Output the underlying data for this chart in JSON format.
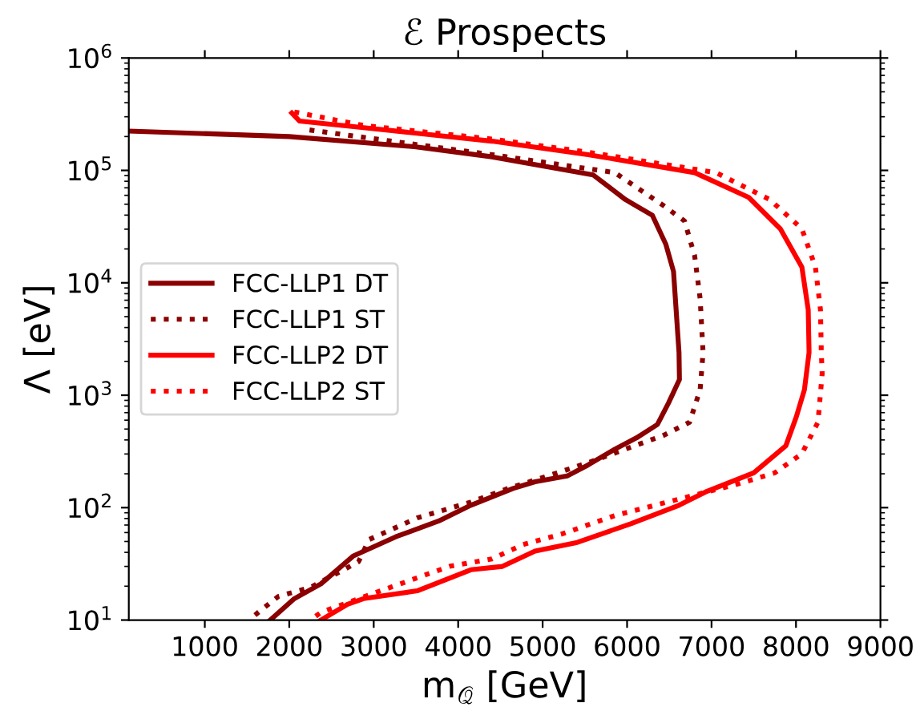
{
  "chart_data": {
    "type": "line",
    "title": "ℰ Prospects",
    "xlabel": "m$_{𝒬}$ [GeV]",
    "ylabel": "Λ [eV]",
    "log": "y",
    "grid": false,
    "legend": "left",
    "marker": "none",
    "xlim": [
      100,
      9000
    ],
    "xticks": [
      1000,
      2000,
      3000,
      4000,
      5000,
      6000,
      7000,
      8000,
      9000
    ],
    "ylim": [
      10,
      1000000
    ],
    "yticks": [
      {
        "value": 10,
        "label": "10$^{1}$"
      },
      {
        "value": 100,
        "label": "10$^{2}$"
      },
      {
        "value": 1000,
        "label": "10$^{3}$"
      },
      {
        "value": 10000,
        "label": "10$^{4}$"
      },
      {
        "value": 100000,
        "label": "10$^{5}$"
      },
      {
        "value": 1000000,
        "label": "10$^{6}$"
      }
    ],
    "series": [
      {
        "name": "FCC-LLP1 DT",
        "color": "#8b0000",
        "line_style": "solid",
        "x": [
          100,
          2000,
          3500,
          4400,
          5600,
          5980,
          6300,
          6460,
          6550,
          6615,
          6620,
          6490,
          6360,
          6110,
          5855,
          5540,
          5290,
          4910,
          4650,
          4150,
          3770,
          3260,
          2755,
          2375,
          2060,
          1775
        ],
        "values": [
          224000,
          200000,
          162000,
          132000,
          91000,
          55000,
          39800,
          21900,
          12600,
          2400,
          1380,
          851,
          550,
          417,
          331,
          240,
          191,
          170,
          148,
          105,
          76,
          55,
          37,
          21,
          15.5,
          10
        ]
      },
      {
        "name": "FCC-LLP1 ST",
        "color": "#8b0000",
        "line_style": "dotted",
        "x": [
          2240,
          3500,
          4400,
          5855,
          6425,
          6680,
          6800,
          6865,
          6900,
          6865,
          6740,
          6425,
          5980,
          5540,
          5095,
          4590,
          4150,
          3515,
          2945,
          2820,
          2250,
          1870,
          1555
        ],
        "values": [
          229000,
          170000,
          138000,
          95500,
          49000,
          35500,
          17400,
          7240,
          2400,
          1120,
          575,
          437,
          331,
          251,
          195,
          148,
          112,
          81,
          52,
          33,
          19.5,
          16.2,
          10.5
        ]
      },
      {
        "name": "FCC-LLP2 DT",
        "color": "#ff0000",
        "line_style": "solid",
        "x": [
          2030,
          2120,
          2880,
          4400,
          5540,
          6800,
          7440,
          7815,
          8070,
          8145,
          8155,
          8100,
          8005,
          7880,
          7500,
          6930,
          6615,
          6045,
          5410,
          4910,
          4525,
          4150,
          3515,
          2880,
          2690,
          2375
        ],
        "values": [
          324000,
          275000,
          240000,
          182000,
          138000,
          95500,
          57500,
          30200,
          13800,
          5750,
          2400,
          1120,
          646,
          355,
          204,
          138,
          105,
          72,
          49,
          41,
          30,
          28,
          18.2,
          15.5,
          13.8,
          10
        ]
      },
      {
        "name": "FCC-LLP2 ST",
        "color": "#ff0000",
        "line_style": "dotted",
        "x": [
          2060,
          2880,
          4400,
          5540,
          7055,
          7690,
          8070,
          8230,
          8290,
          8300,
          8310,
          8260,
          8070,
          7750,
          7310,
          6740,
          5855,
          5220,
          4770,
          4400,
          3895,
          3010,
          2375,
          2250
        ],
        "values": [
          331000,
          251000,
          190000,
          145000,
          95500,
          55000,
          30200,
          13800,
          5750,
          2400,
          1550,
          575,
          302,
          204,
          162,
          126,
          85,
          58,
          47,
          35,
          30,
          17.4,
          11.7,
          10
        ]
      }
    ]
  }
}
